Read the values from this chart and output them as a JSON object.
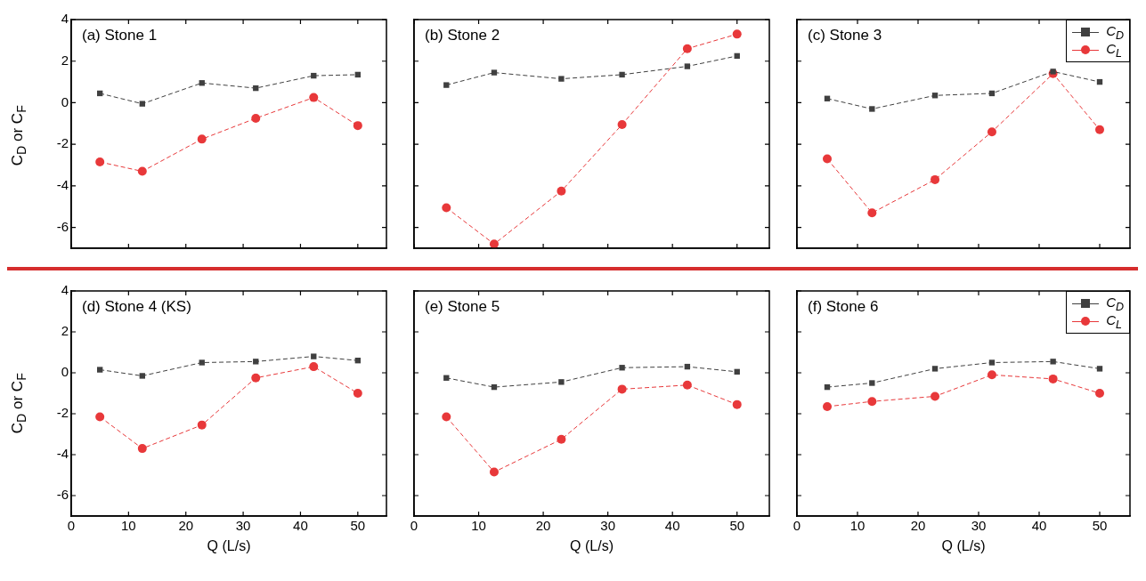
{
  "chart_data": [
    {
      "type": "line",
      "title": "(a) Stone 1",
      "ylabel": "C$_{D}$ or C$_{F}$",
      "x": [
        5,
        12.4,
        22.8,
        32.2,
        42.3,
        50
      ],
      "xlim": [
        0,
        55
      ],
      "xticks": [
        0,
        10,
        20,
        30,
        40,
        50
      ],
      "ylim": [
        -7,
        4
      ],
      "yticks": [
        -6,
        -4,
        -2,
        0,
        2,
        4
      ],
      "tick_labels": "y",
      "line_style": "dashed",
      "series": [
        {
          "color": "#404040",
          "marker": "square",
          "values": [
            0.45,
            -0.05,
            0.95,
            0.7,
            1.3,
            1.35
          ]
        },
        {
          "color": "#e8383a",
          "marker": "circle",
          "values": [
            -2.85,
            -3.3,
            -1.75,
            -0.75,
            0.25,
            -1.1
          ]
        }
      ]
    },
    {
      "type": "line",
      "title": "(b) Stone 2",
      "x": [
        5,
        12.4,
        22.8,
        32.2,
        42.3,
        50
      ],
      "xlim": [
        0,
        55
      ],
      "xticks": [
        0,
        10,
        20,
        30,
        40,
        50
      ],
      "ylim": [
        -7,
        4
      ],
      "yticks": [
        -6,
        -4,
        -2,
        0,
        2,
        4
      ],
      "tick_labels": false,
      "line_style": "dashed",
      "series": [
        {
          "color": "#404040",
          "marker": "square",
          "values": [
            0.85,
            1.45,
            1.15,
            1.35,
            1.75,
            2.25
          ]
        },
        {
          "color": "#e8383a",
          "marker": "circle",
          "values": [
            -5.05,
            -6.8,
            -4.25,
            -1.05,
            2.6,
            3.3
          ]
        }
      ]
    },
    {
      "type": "line",
      "title": "(c) Stone 3",
      "x": [
        5,
        12.4,
        22.8,
        32.2,
        42.3,
        50
      ],
      "xlim": [
        0,
        55
      ],
      "xticks": [
        0,
        10,
        20,
        30,
        40,
        50
      ],
      "ylim": [
        -7,
        4
      ],
      "yticks": [
        -6,
        -4,
        -2,
        0,
        2,
        4
      ],
      "tick_labels": false,
      "line_style": "dashed",
      "legend": "top right",
      "series": [
        {
          "name": "C$_{D}$",
          "color": "#404040",
          "marker": "square",
          "values": [
            0.2,
            -0.3,
            0.35,
            0.45,
            1.5,
            1.0
          ]
        },
        {
          "name": "C$_{L}$",
          "color": "#e8383a",
          "marker": "circle",
          "values": [
            -2.7,
            -5.3,
            -3.7,
            -1.4,
            1.4,
            -1.3
          ]
        }
      ]
    },
    {
      "type": "line",
      "title": "(d) Stone 4 (KS)",
      "xlabel": "Q (L/s)",
      "ylabel": "C$_{D}$ or C$_{F}$",
      "x": [
        5,
        12.4,
        22.8,
        32.2,
        42.3,
        50
      ],
      "xlim": [
        0,
        55
      ],
      "xticks": [
        0,
        10,
        20,
        30,
        40,
        50
      ],
      "ylim": [
        -7,
        4
      ],
      "yticks": [
        -6,
        -4,
        -2,
        0,
        2,
        4
      ],
      "line_style": "dashed",
      "series": [
        {
          "color": "#404040",
          "marker": "square",
          "values": [
            0.15,
            -0.15,
            0.5,
            0.55,
            0.8,
            0.6
          ]
        },
        {
          "color": "#e8383a",
          "marker": "circle",
          "values": [
            -2.15,
            -3.7,
            -2.55,
            -0.25,
            0.3,
            -1.0
          ]
        }
      ]
    },
    {
      "type": "line",
      "title": "(e) Stone 5",
      "xlabel": "Q (L/s)",
      "x": [
        5,
        12.4,
        22.8,
        32.2,
        42.3,
        50
      ],
      "xlim": [
        0,
        55
      ],
      "xticks": [
        0,
        10,
        20,
        30,
        40,
        50
      ],
      "ylim": [
        -7,
        4
      ],
      "yticks": [
        -6,
        -4,
        -2,
        0,
        2,
        4
      ],
      "tick_labels": "x",
      "line_style": "dashed",
      "series": [
        {
          "color": "#404040",
          "marker": "square",
          "values": [
            -0.25,
            -0.7,
            -0.45,
            0.25,
            0.3,
            0.05
          ]
        },
        {
          "color": "#e8383a",
          "marker": "circle",
          "values": [
            -2.15,
            -4.85,
            -3.25,
            -0.8,
            -0.6,
            -1.55
          ]
        }
      ]
    },
    {
      "type": "line",
      "title": "(f) Stone 6",
      "xlabel": "Q (L/s)",
      "x": [
        5,
        12.4,
        22.8,
        32.2,
        42.3,
        50
      ],
      "xlim": [
        0,
        55
      ],
      "xticks": [
        0,
        10,
        20,
        30,
        40,
        50
      ],
      "ylim": [
        -7,
        4
      ],
      "yticks": [
        -6,
        -4,
        -2,
        0,
        2,
        4
      ],
      "tick_labels": "x",
      "line_style": "dashed",
      "legend": "top right",
      "series": [
        {
          "name": "C$_{D}$",
          "color": "#404040",
          "marker": "square",
          "values": [
            -0.7,
            -0.5,
            0.2,
            0.5,
            0.55,
            0.2
          ]
        },
        {
          "name": "C$_{L}$",
          "color": "#e8383a",
          "marker": "circle",
          "values": [
            -1.65,
            -1.4,
            -1.15,
            -0.1,
            -0.3,
            -1.0
          ]
        }
      ]
    }
  ]
}
